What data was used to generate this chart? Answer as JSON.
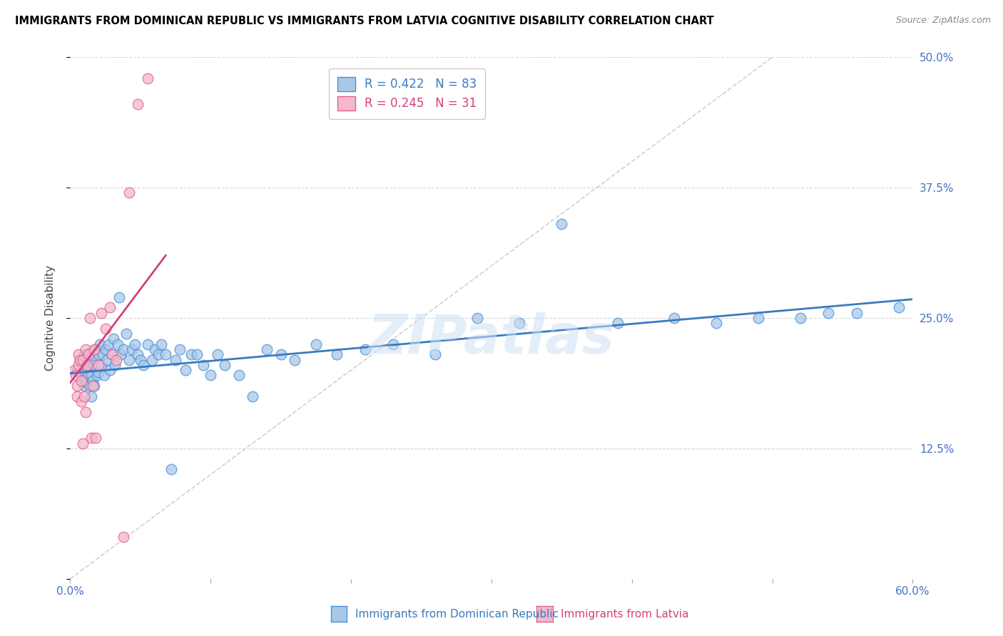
{
  "title": "IMMIGRANTS FROM DOMINICAN REPUBLIC VS IMMIGRANTS FROM LATVIA COGNITIVE DISABILITY CORRELATION CHART",
  "source": "Source: ZipAtlas.com",
  "ylabel": "Cognitive Disability",
  "xlim": [
    0.0,
    0.6
  ],
  "ylim": [
    0.0,
    0.5
  ],
  "xticks": [
    0.0,
    0.1,
    0.2,
    0.3,
    0.4,
    0.5,
    0.6
  ],
  "yticks": [
    0.0,
    0.125,
    0.25,
    0.375,
    0.5
  ],
  "ytick_labels": [
    "",
    "12.5%",
    "25.0%",
    "37.5%",
    "50.0%"
  ],
  "xtick_labels": [
    "0.0%",
    "",
    "",
    "",
    "",
    "",
    "60.0%"
  ],
  "blue_R": 0.422,
  "blue_N": 83,
  "pink_R": 0.245,
  "pink_N": 31,
  "blue_color": "#a8c8e8",
  "pink_color": "#f4b8cc",
  "blue_edge_color": "#4a90d9",
  "pink_edge_color": "#e0608a",
  "blue_line_color": "#3a7abf",
  "pink_line_color": "#d44080",
  "diagonal_color": "#cccccc",
  "watermark": "ZIPatlas",
  "blue_scatter_x": [
    0.005,
    0.007,
    0.008,
    0.009,
    0.01,
    0.01,
    0.01,
    0.011,
    0.012,
    0.012,
    0.013,
    0.013,
    0.014,
    0.015,
    0.015,
    0.015,
    0.016,
    0.016,
    0.017,
    0.017,
    0.018,
    0.019,
    0.02,
    0.02,
    0.021,
    0.022,
    0.023,
    0.024,
    0.025,
    0.026,
    0.027,
    0.028,
    0.03,
    0.031,
    0.032,
    0.034,
    0.035,
    0.036,
    0.038,
    0.04,
    0.042,
    0.044,
    0.046,
    0.048,
    0.05,
    0.052,
    0.055,
    0.058,
    0.06,
    0.063,
    0.065,
    0.068,
    0.072,
    0.075,
    0.078,
    0.082,
    0.086,
    0.09,
    0.095,
    0.1,
    0.105,
    0.11,
    0.12,
    0.13,
    0.14,
    0.15,
    0.16,
    0.175,
    0.19,
    0.21,
    0.23,
    0.26,
    0.29,
    0.32,
    0.35,
    0.39,
    0.43,
    0.46,
    0.49,
    0.52,
    0.54,
    0.56,
    0.59
  ],
  "blue_scatter_y": [
    0.2,
    0.21,
    0.195,
    0.205,
    0.185,
    0.215,
    0.198,
    0.192,
    0.188,
    0.202,
    0.195,
    0.208,
    0.185,
    0.218,
    0.195,
    0.175,
    0.21,
    0.19,
    0.205,
    0.185,
    0.22,
    0.195,
    0.215,
    0.198,
    0.225,
    0.205,
    0.215,
    0.195,
    0.22,
    0.21,
    0.225,
    0.2,
    0.215,
    0.23,
    0.205,
    0.225,
    0.27,
    0.215,
    0.22,
    0.235,
    0.21,
    0.22,
    0.225,
    0.215,
    0.21,
    0.205,
    0.225,
    0.21,
    0.22,
    0.215,
    0.225,
    0.215,
    0.105,
    0.21,
    0.22,
    0.2,
    0.215,
    0.215,
    0.205,
    0.195,
    0.215,
    0.205,
    0.195,
    0.175,
    0.22,
    0.215,
    0.21,
    0.225,
    0.215,
    0.22,
    0.225,
    0.215,
    0.25,
    0.245,
    0.34,
    0.245,
    0.25,
    0.245,
    0.25,
    0.25,
    0.255,
    0.255,
    0.26
  ],
  "pink_scatter_x": [
    0.003,
    0.004,
    0.005,
    0.005,
    0.006,
    0.006,
    0.007,
    0.008,
    0.008,
    0.009,
    0.009,
    0.01,
    0.011,
    0.011,
    0.012,
    0.013,
    0.014,
    0.015,
    0.016,
    0.017,
    0.018,
    0.02,
    0.022,
    0.025,
    0.028,
    0.03,
    0.033,
    0.038,
    0.042,
    0.048,
    0.055
  ],
  "pink_scatter_y": [
    0.2,
    0.195,
    0.185,
    0.175,
    0.205,
    0.215,
    0.21,
    0.19,
    0.17,
    0.21,
    0.13,
    0.175,
    0.22,
    0.16,
    0.205,
    0.215,
    0.25,
    0.135,
    0.185,
    0.22,
    0.135,
    0.205,
    0.255,
    0.24,
    0.26,
    0.215,
    0.21,
    0.04,
    0.37,
    0.455,
    0.48
  ]
}
